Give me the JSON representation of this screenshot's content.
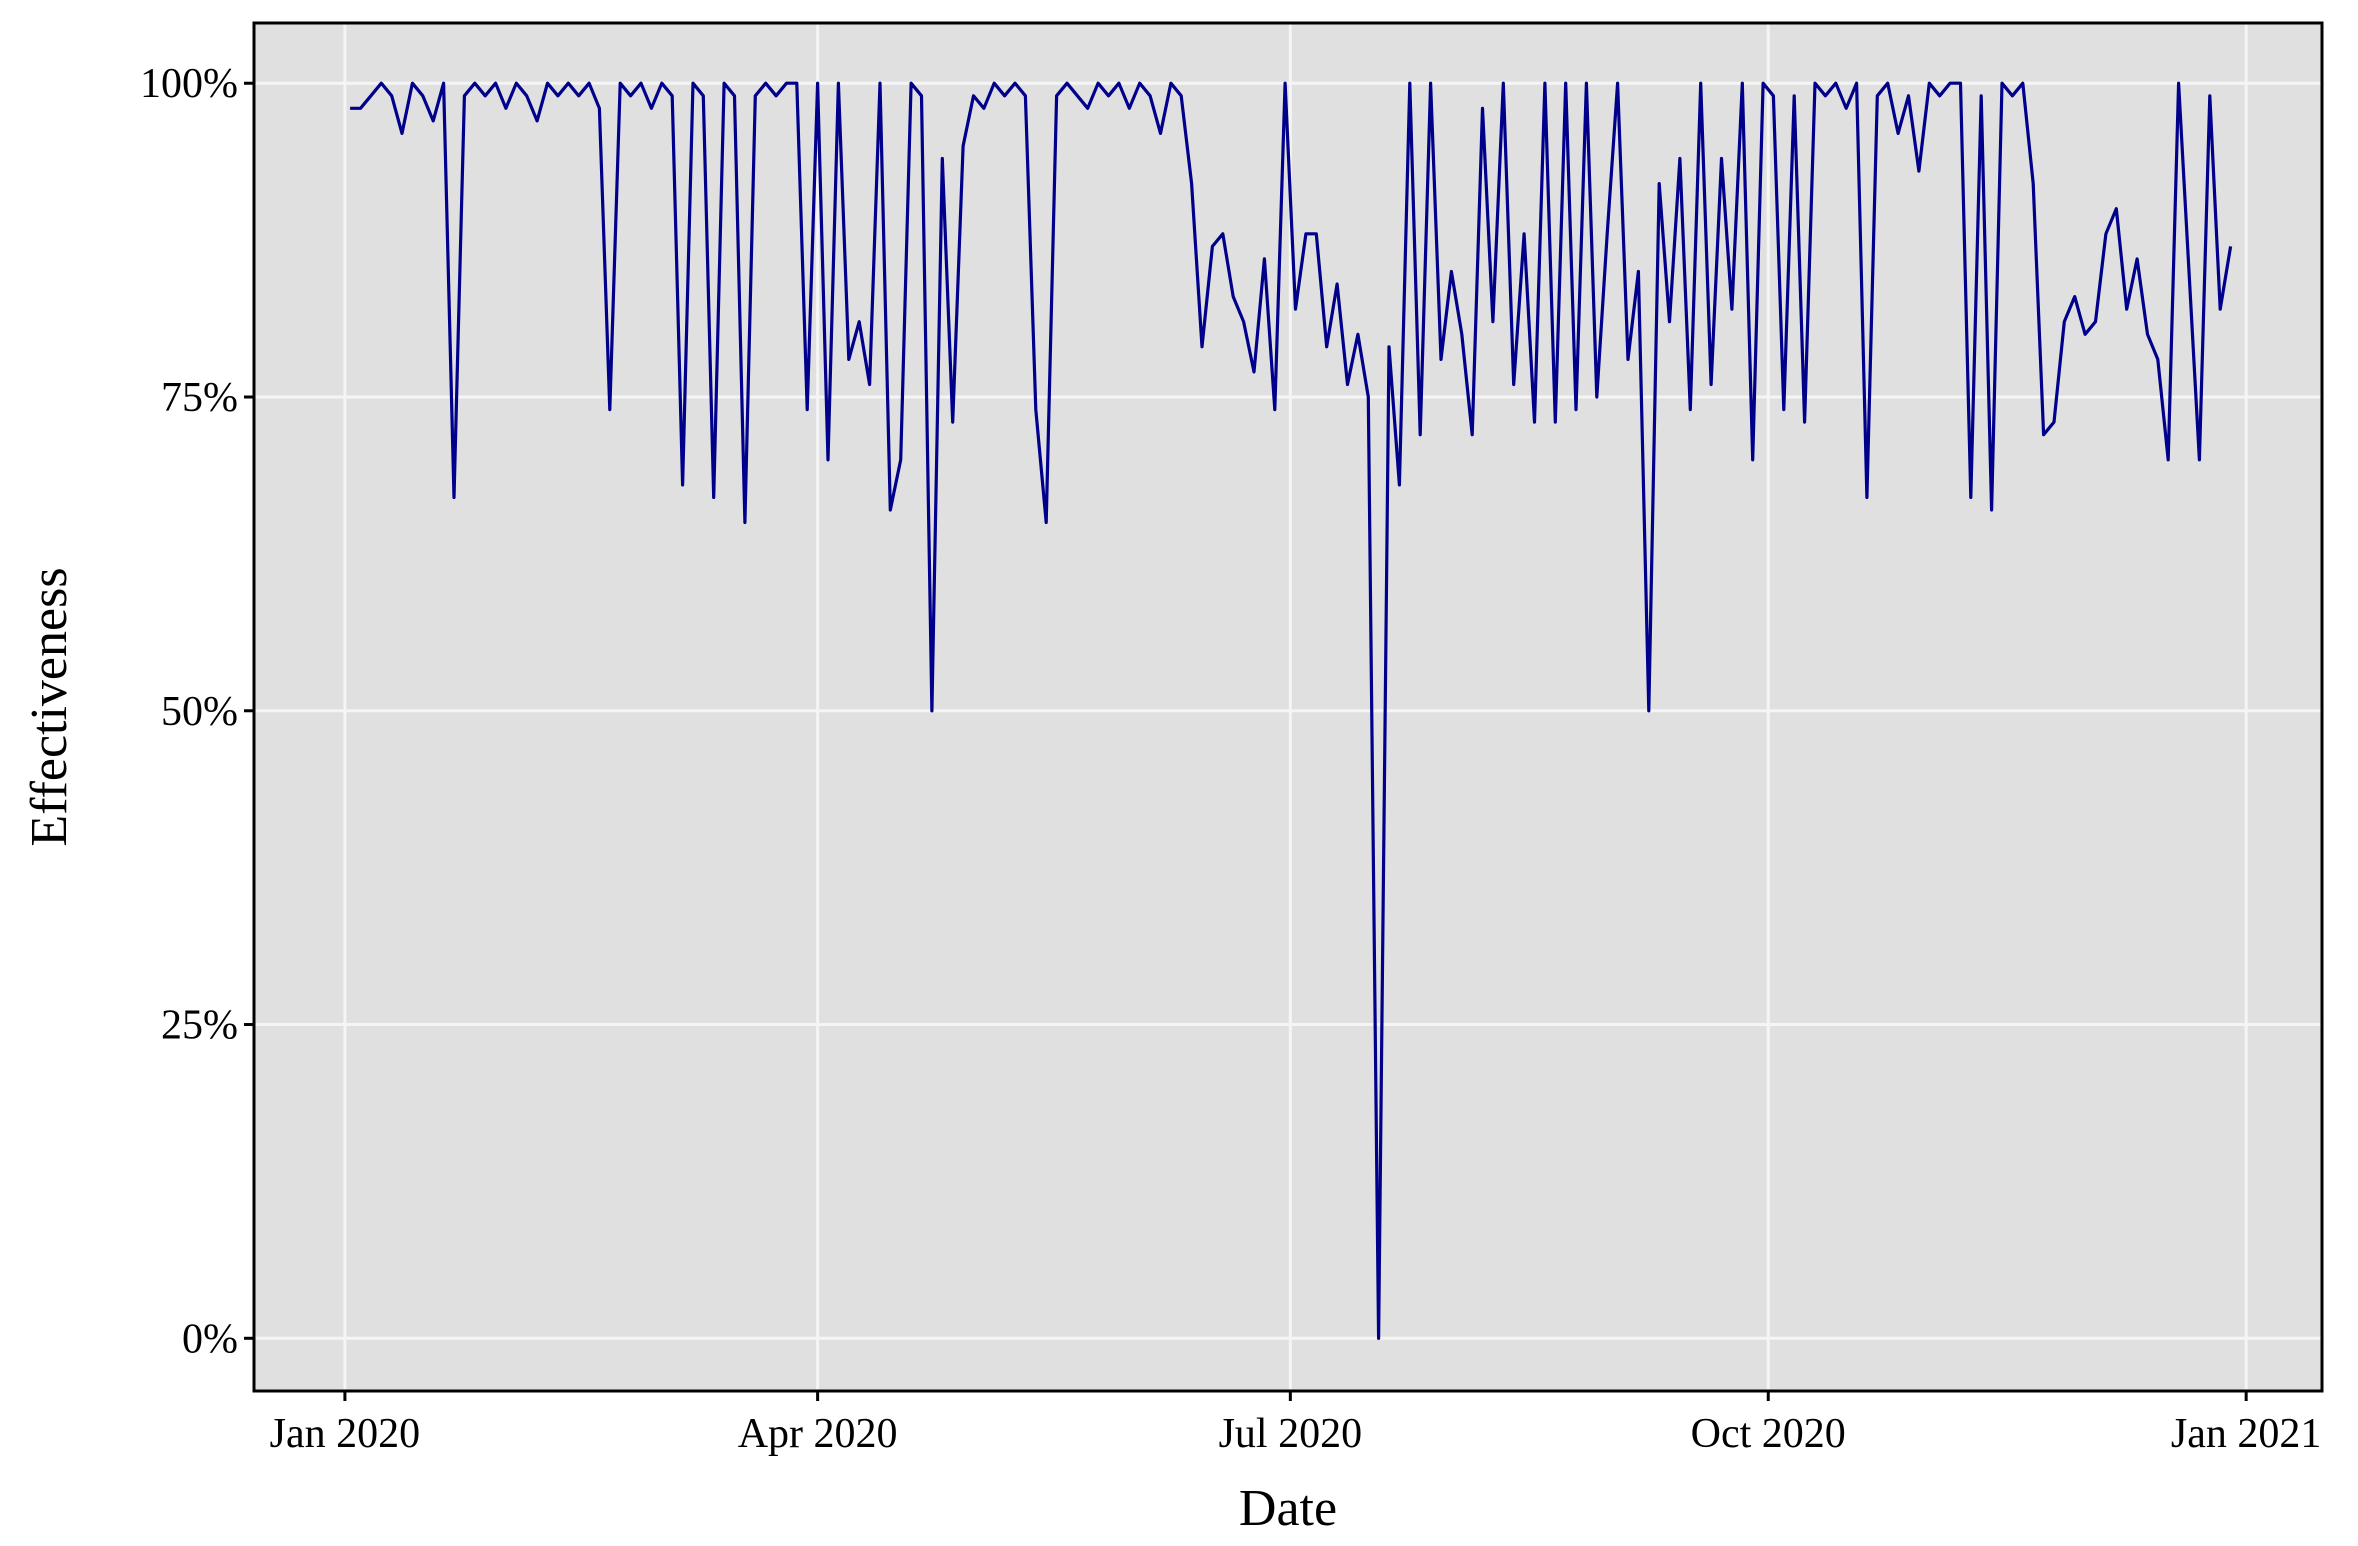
{
  "chart_data": {
    "type": "line",
    "x_label": "Date",
    "y_label": "Effectiveness",
    "xlim": [
      -17.5,
      380.6
    ],
    "ylim": [
      -4.2,
      104.8
    ],
    "xticks": [
      {
        "value": 0,
        "label": "Jan 2020"
      },
      {
        "value": 91,
        "label": "Apr 2020"
      },
      {
        "value": 182,
        "label": "Jul 2020"
      },
      {
        "value": 274,
        "label": "Oct 2020"
      },
      {
        "value": 366,
        "label": "Jan 2021"
      }
    ],
    "yticks": [
      {
        "value": 0,
        "label": "0%"
      },
      {
        "value": 25,
        "label": "25%"
      },
      {
        "value": 50,
        "label": "50%"
      },
      {
        "value": 75,
        "label": "75%"
      },
      {
        "value": 100,
        "label": "100%"
      }
    ],
    "grid": true,
    "series": [
      {
        "color": "#00008b",
        "x": [
          1,
          3,
          5,
          7,
          9,
          11,
          13,
          15,
          17,
          19,
          21,
          23,
          25,
          27,
          29,
          31,
          33,
          35,
          37,
          39,
          41,
          43,
          45,
          47,
          49,
          51,
          53,
          55,
          57,
          59,
          61,
          63,
          65,
          67,
          69,
          71,
          73,
          75,
          77,
          79,
          81,
          83,
          85,
          87,
          89,
          91,
          93,
          95,
          97,
          99,
          101,
          103,
          105,
          107,
          109,
          111,
          113,
          115,
          117,
          119,
          121,
          123,
          125,
          127,
          129,
          131,
          133,
          135,
          137,
          139,
          141,
          143,
          145,
          147,
          149,
          151,
          153,
          155,
          157,
          159,
          161,
          163,
          165,
          167,
          169,
          171,
          173,
          175,
          177,
          179,
          181,
          183,
          185,
          187,
          189,
          191,
          193,
          195,
          197,
          199,
          201,
          203,
          205,
          207,
          209,
          211,
          213,
          215,
          217,
          219,
          221,
          223,
          225,
          227,
          229,
          231,
          233,
          235,
          237,
          239,
          241,
          243,
          245,
          247,
          249,
          251,
          253,
          255,
          257,
          259,
          261,
          263,
          265,
          267,
          269,
          271,
          273,
          275,
          277,
          279,
          281,
          283,
          285,
          287,
          289,
          291,
          293,
          295,
          297,
          299,
          301,
          303,
          305,
          307,
          309,
          311,
          313,
          315,
          317,
          319,
          321,
          323,
          325,
          327,
          329,
          331,
          333,
          335,
          337,
          339,
          341,
          343,
          345,
          347,
          349,
          351,
          353,
          355,
          357,
          359,
          361,
          363
        ],
        "values": [
          98,
          98,
          99,
          100,
          99,
          96,
          100,
          99,
          97,
          100,
          67,
          99,
          100,
          99,
          100,
          98,
          100,
          99,
          97,
          100,
          99,
          100,
          99,
          100,
          98,
          74,
          100,
          99,
          100,
          98,
          100,
          99,
          68,
          100,
          99,
          67,
          100,
          99,
          65,
          99,
          100,
          99,
          100,
          100,
          74,
          100,
          70,
          100,
          78,
          81,
          76,
          100,
          66,
          70,
          100,
          99,
          50,
          94,
          73,
          95,
          99,
          98,
          100,
          99,
          100,
          99,
          74,
          65,
          99,
          100,
          99,
          98,
          100,
          99,
          100,
          98,
          100,
          99,
          96,
          100,
          99,
          92,
          79,
          87,
          88,
          83,
          81,
          77,
          86,
          74,
          100,
          82,
          88,
          88,
          79,
          84,
          76,
          80,
          75,
          0,
          79,
          68,
          100,
          72,
          100,
          78,
          85,
          80,
          72,
          98,
          81,
          100,
          76,
          88,
          73,
          100,
          73,
          100,
          74,
          100,
          75,
          88,
          100,
          78,
          85,
          50,
          92,
          81,
          94,
          74,
          100,
          76,
          94,
          82,
          100,
          70,
          100,
          99,
          74,
          99,
          73,
          100,
          99,
          100,
          98,
          100,
          67,
          99,
          100,
          96,
          99,
          93,
          100,
          99,
          100,
          100,
          67,
          99,
          66,
          100,
          99,
          100,
          92,
          72,
          73,
          81,
          83,
          80,
          81,
          88,
          90,
          82,
          86,
          80,
          78,
          70,
          100,
          85,
          70,
          99,
          82,
          87
        ]
      }
    ]
  }
}
